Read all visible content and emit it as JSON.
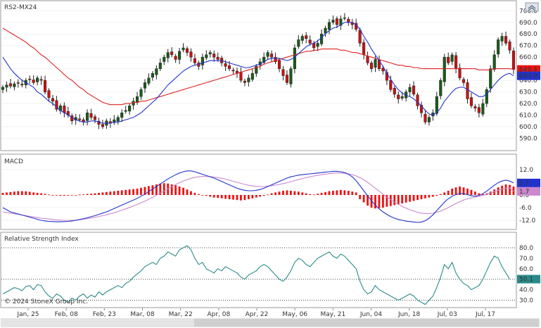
{
  "symbol": "RS2-MX24",
  "copyright": "© 2024 StoneX Group Inc.",
  "panels": {
    "price": {
      "title": "RS2-MX24"
    },
    "macd": {
      "title": "MACD"
    },
    "rsi": {
      "title": "Relative Strength Index"
    }
  },
  "colors": {
    "up": "#1a5c1a",
    "down": "#cc1111",
    "ma_short": "#2233cc",
    "ma_long": "#dd2222",
    "macd_line": "#2233cc",
    "signal_line": "#cc88cc",
    "hist": "#ee1111",
    "rsi": "#2a8a8a",
    "last_price_badge": "#ee1111",
    "ma_badge": "#2233cc"
  },
  "chart_data": [
    {
      "type": "candlestick",
      "panel": "price",
      "x_labels": [
        "Jan, 25",
        "Feb, 08",
        "Feb, 23",
        "Mar, 08",
        "Mar, 22",
        "Apr, 08",
        "Apr, 22",
        "May, 06",
        "May, 21",
        "Jun, 04",
        "Jun, 18",
        "Jul, 03",
        "Jul, 17"
      ],
      "y_ticks": [
        590.0,
        600.0,
        610.0,
        620.0,
        630.0,
        640.0,
        650.0,
        660.0,
        670.0,
        680.0,
        690.0,
        700.0
      ],
      "ylim": [
        583,
        702
      ],
      "badges": [
        {
          "label": "649.4",
          "value": 649.4,
          "color": "#ee1111"
        },
        {
          "label": "643.9",
          "value": 643.9,
          "color": "#2233cc"
        }
      ],
      "close": [
        634,
        636,
        635,
        637,
        638,
        636,
        640,
        641,
        638,
        642,
        640,
        630,
        625,
        622,
        615,
        618,
        612,
        610,
        605,
        608,
        606,
        604,
        612,
        608,
        606,
        602,
        600,
        605,
        603,
        606,
        608,
        612,
        614,
        618,
        622,
        626,
        632,
        638,
        642,
        646,
        650,
        655,
        660,
        664,
        662,
        658,
        665,
        668,
        664,
        660,
        655,
        652,
        660,
        662,
        664,
        660,
        658,
        655,
        652,
        650,
        648,
        646,
        640,
        638,
        642,
        646,
        652,
        656,
        660,
        664,
        660,
        656,
        650,
        644,
        638,
        650,
        668,
        675,
        678,
        676,
        672,
        668,
        672,
        680,
        685,
        690,
        692,
        688,
        693,
        694,
        690,
        688,
        684,
        672,
        662,
        655,
        650,
        658,
        650,
        648,
        640,
        632,
        628,
        624,
        626,
        630,
        634,
        628,
        618,
        612,
        604,
        608,
        612,
        626,
        640,
        660,
        655,
        662,
        650,
        642,
        638,
        624,
        618,
        616,
        612,
        620,
        632,
        650,
        662,
        675,
        678,
        672,
        666,
        649.4
      ],
      "ma_short": [
        660,
        655,
        650,
        646,
        643,
        640,
        638,
        636,
        634,
        630,
        628,
        625,
        622,
        620,
        617,
        614,
        612,
        610,
        608,
        606,
        605,
        604,
        604,
        605,
        605,
        604,
        603,
        603,
        603,
        604,
        604,
        605,
        606,
        607,
        608,
        610,
        612,
        615,
        618,
        621,
        624,
        628,
        632,
        636,
        639,
        642,
        645,
        648,
        650,
        652,
        653,
        654,
        655,
        656,
        657,
        657,
        657,
        657,
        656,
        655,
        654,
        653,
        652,
        651,
        651,
        652,
        653,
        654,
        656,
        658,
        659,
        659,
        659,
        658,
        657,
        658,
        660,
        663,
        666,
        669,
        671,
        672,
        674,
        677,
        680,
        683,
        685,
        686,
        688,
        690,
        690,
        690,
        688,
        684,
        678,
        673,
        667,
        662,
        657,
        652,
        646,
        641,
        636,
        632,
        629,
        627,
        626,
        624,
        621,
        618,
        614,
        611,
        610,
        612,
        616,
        622,
        626,
        630,
        633,
        634,
        634,
        632,
        630,
        628,
        626,
        626,
        628,
        632,
        636,
        640,
        643,
        645,
        646,
        643.9
      ],
      "ma_long": [
        685,
        683,
        681,
        679,
        677,
        675,
        673,
        670,
        668,
        665,
        662,
        660,
        657,
        654,
        651,
        648,
        645,
        642,
        640,
        637,
        634,
        632,
        629,
        627,
        625,
        623,
        621,
        620,
        619,
        619,
        619,
        619,
        620,
        620,
        621,
        621,
        622,
        622,
        623,
        624,
        625,
        626,
        627,
        628,
        629,
        630,
        631,
        632,
        633,
        634,
        635,
        636,
        637,
        638,
        639,
        640,
        641,
        642,
        643,
        644,
        645,
        646,
        647,
        648,
        649,
        650,
        651,
        652,
        654,
        655,
        656,
        657,
        658,
        659,
        660,
        661,
        662,
        663,
        664,
        665,
        665,
        666,
        666,
        667,
        667,
        667,
        667,
        667,
        666,
        666,
        665,
        664,
        664,
        663,
        662,
        661,
        660,
        659,
        658,
        657,
        656,
        655,
        654,
        653,
        653,
        652,
        652,
        651,
        651,
        650,
        650,
        650,
        650,
        650,
        650,
        650,
        650,
        650,
        650,
        650,
        650,
        650,
        650,
        650,
        649,
        649,
        649,
        649,
        650,
        650,
        650,
        650,
        650,
        649.4
      ]
    },
    {
      "type": "bar",
      "panel": "macd",
      "y_ticks": [
        12.0,
        5.7,
        0.0,
        -6.0,
        -12.0
      ],
      "ylim": [
        -15,
        15
      ],
      "badges": [
        {
          "label": "5.7",
          "value": 5.7,
          "color": "#2233cc"
        },
        {
          "label": "1.7",
          "value": 1.7,
          "color": "#cc88cc"
        }
      ],
      "hist": [
        1,
        1.2,
        1.4,
        1.6,
        1.8,
        1.8,
        1.7,
        1.5,
        1.2,
        1,
        0.8,
        0.5,
        0.2,
        0,
        -0.2,
        -0.4,
        -0.4,
        -0.3,
        -0.2,
        0,
        0.2,
        0.3,
        0.5,
        0.6,
        0.8,
        1,
        1.2,
        1.4,
        1.6,
        1.8,
        2,
        2.2,
        2.4,
        2.6,
        2.8,
        3,
        3.4,
        3.8,
        4.2,
        4.6,
        5,
        5.4,
        5.6,
        5.4,
        5,
        4.6,
        4,
        3.4,
        2.6,
        1.8,
        1,
        0.4,
        0,
        -0.4,
        -0.8,
        -1.2,
        -1.4,
        -1.6,
        -1.8,
        -2,
        -2.2,
        -2.4,
        -2.6,
        -2.4,
        -2,
        -1.6,
        -1.2,
        -0.8,
        -0.4,
        0.2,
        0.8,
        1.2,
        1.6,
        2,
        2.2,
        2,
        1.8,
        1.6,
        1.2,
        0.8,
        0.4,
        0.2,
        0.6,
        1,
        1.4,
        1.8,
        2,
        2.2,
        2.4,
        2.2,
        2,
        1.6,
        1.2,
        -2,
        -3.5,
        -5,
        -6,
        -6.4,
        -6.2,
        -6,
        -5.6,
        -5.2,
        -4.8,
        -4.4,
        -4,
        -3.6,
        -3.2,
        -2.8,
        -2.4,
        -2,
        -1.6,
        -1.2,
        -0.8,
        -0.4,
        0.4,
        1.2,
        2,
        3,
        3.6,
        4,
        3.6,
        3,
        2.4,
        1.6,
        0.8,
        0.4,
        0.8,
        1.6,
        2.6,
        3.6,
        4.4,
        5,
        4.8,
        4
      ],
      "macd_line": [
        -6,
        -7,
        -8,
        -8.5,
        -9,
        -9.5,
        -10,
        -10.5,
        -11,
        -11.5,
        -12,
        -12.3,
        -12.5,
        -12.6,
        -12.7,
        -12.7,
        -12.6,
        -12.5,
        -12.3,
        -12,
        -11.6,
        -11.2,
        -10.8,
        -10.3,
        -9.8,
        -9.2,
        -8.6,
        -8,
        -7.2,
        -6.4,
        -5.6,
        -4.8,
        -4,
        -3.2,
        -2.4,
        -1.6,
        -0.6,
        0.4,
        1.6,
        2.8,
        4,
        5.2,
        6.4,
        7.6,
        8.6,
        9.6,
        10.4,
        11,
        11.4,
        11.4,
        11,
        10.4,
        9.8,
        9.2,
        8.6,
        8,
        7.2,
        6.4,
        5.6,
        4.8,
        4,
        3.2,
        2.6,
        2.2,
        2,
        2,
        2.2,
        2.6,
        3.2,
        4,
        4.8,
        5.6,
        6.4,
        7.2,
        8,
        8.6,
        9,
        9.4,
        9.6,
        9.8,
        10,
        10.2,
        10.4,
        10.6,
        10.8,
        11,
        11.2,
        11.2,
        11,
        10.6,
        9.8,
        8.6,
        6.8,
        4.4,
        2,
        -0.4,
        -2.8,
        -4.8,
        -6.6,
        -8,
        -9.2,
        -10.2,
        -11,
        -11.6,
        -12,
        -12.4,
        -12.6,
        -12.8,
        -13,
        -12.8,
        -12.2,
        -11,
        -9.4,
        -7.4,
        -5.4,
        -3.4,
        -1.8,
        -0.6,
        0.2,
        0.6,
        0.6,
        0.2,
        -0.4,
        -0.6,
        -0.2,
        0.6,
        1.8,
        3.2,
        4.6,
        5.8,
        6.6,
        7,
        6.6,
        5.7
      ],
      "signal_line": [
        -8,
        -8.3,
        -8.6,
        -8.9,
        -9.2,
        -9.5,
        -9.8,
        -10.1,
        -10.4,
        -10.7,
        -11,
        -11.2,
        -11.4,
        -11.6,
        -11.8,
        -11.9,
        -12,
        -12,
        -12,
        -11.9,
        -11.7,
        -11.5,
        -11.2,
        -10.9,
        -10.6,
        -10.2,
        -9.8,
        -9.4,
        -8.9,
        -8.4,
        -7.8,
        -7.2,
        -6.6,
        -5.9,
        -5.2,
        -4.5,
        -3.7,
        -2.9,
        -2,
        -1.1,
        -0.1,
        0.9,
        1.9,
        2.9,
        3.9,
        4.9,
        5.8,
        6.6,
        7.3,
        7.9,
        8.3,
        8.6,
        8.8,
        8.8,
        8.7,
        8.5,
        8.2,
        7.9,
        7.5,
        7,
        6.5,
        6,
        5.5,
        5,
        4.6,
        4.3,
        4.1,
        4,
        4,
        4.2,
        4.4,
        4.7,
        5,
        5.4,
        5.8,
        6.3,
        6.8,
        7.3,
        7.8,
        8.2,
        8.6,
        9,
        9.3,
        9.6,
        9.9,
        10.1,
        10.3,
        10.4,
        10.4,
        10.3,
        10,
        9.6,
        9,
        8.2,
        7.2,
        6,
        4.6,
        3.2,
        1.8,
        0.4,
        -1,
        -2.2,
        -3.4,
        -4.4,
        -5.4,
        -6.2,
        -7,
        -7.6,
        -8.2,
        -8.6,
        -8.8,
        -8.8,
        -8.6,
        -8.2,
        -7.6,
        -6.8,
        -6,
        -5,
        -4,
        -3.2,
        -2.4,
        -1.8,
        -1.4,
        -1,
        -0.6,
        -0.2,
        0.4,
        1,
        1.6,
        2.2,
        2.8,
        3.2,
        3.4,
        1.7
      ]
    },
    {
      "type": "line",
      "panel": "rsi",
      "y_ticks": [
        80.0,
        70.0,
        60.0,
        50.1,
        40.0,
        30.0
      ],
      "ylim": [
        25,
        86
      ],
      "badges": [
        {
          "label": "50.1",
          "value": 50.1,
          "color": "#2a8a8a"
        }
      ],
      "values": [
        36,
        38,
        40,
        42,
        41,
        39,
        43,
        44,
        40,
        45,
        44,
        38,
        34,
        32,
        36,
        34,
        30,
        28,
        32,
        30,
        34,
        36,
        32,
        35,
        33,
        38,
        35,
        38,
        40,
        42,
        44,
        42,
        46,
        48,
        52,
        55,
        58,
        62,
        64,
        66,
        64,
        70,
        72,
        76,
        74,
        72,
        78,
        80,
        82,
        78,
        70,
        64,
        66,
        60,
        58,
        56,
        60,
        58,
        62,
        60,
        58,
        56,
        52,
        50,
        54,
        56,
        58,
        62,
        64,
        62,
        58,
        54,
        50,
        48,
        52,
        58,
        66,
        70,
        68,
        64,
        62,
        66,
        70,
        72,
        74,
        76,
        72,
        70,
        74,
        72,
        68,
        64,
        60,
        48,
        40,
        36,
        38,
        44,
        40,
        38,
        36,
        34,
        32,
        30,
        32,
        34,
        36,
        34,
        30,
        28,
        26,
        30,
        34,
        42,
        52,
        64,
        60,
        66,
        56,
        50,
        46,
        44,
        40,
        42,
        44,
        50,
        58,
        66,
        72,
        70,
        62,
        56,
        50.1
      ]
    }
  ]
}
